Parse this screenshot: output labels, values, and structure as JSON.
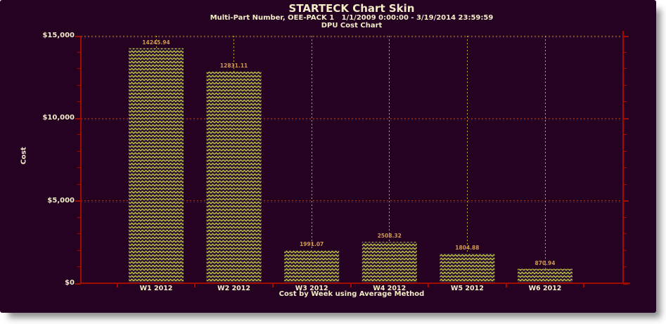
{
  "window": {
    "background": "#250222",
    "frame_shadow": "#8a8a8a"
  },
  "header": {
    "title": "STARTECK Chart Skin",
    "subtitle": "Multi-Part Number, OEE-PACK 1   1/1/2009 0:00:00 - 3/19/2014 23:59:59",
    "chart_name": "DPU Cost Chart"
  },
  "chart_data": {
    "type": "bar",
    "title": "STARTECK Chart Skin",
    "subtitle": "Multi-Part Number, OEE-PACK 1   1/1/2009 0:00:00 - 3/19/2014 23:59:59",
    "chart_label": "DPU Cost Chart",
    "categories": [
      "W1 2012",
      "W2 2012",
      "W3 2012",
      "W4 2012",
      "W5 2012",
      "W6 2012"
    ],
    "values": [
      14245.94,
      12831.11,
      1991.07,
      2508.32,
      1804.88,
      870.94
    ],
    "bar_value_labels": [
      "14245.94",
      "12831.11",
      "1991.07",
      "2508.32",
      "1804.88",
      "870.94"
    ],
    "xlabel": "Cost by Week using Average Method",
    "ylabel": "Cost",
    "ylim": [
      0,
      15000
    ],
    "ymajor_ticks": [
      0,
      5000,
      10000,
      15000
    ],
    "ymajor_tick_labels": [
      "$0",
      "$5,000",
      "$10,000",
      "$15,000"
    ],
    "yminor_tick_step": 1000,
    "grid": {
      "horizontal_major": "dotted",
      "vertical_category_centers": "dotted"
    },
    "legend_position": "none",
    "bar_style": "yellow zigzag hatch on dark purple fill"
  },
  "colors": {
    "background": "#250222",
    "title_text": "#f2edc7",
    "axis_text": "#f2edc7",
    "bar_label_text": "#cf9a52",
    "axis_line": "#a30b00",
    "grid_horizontal": "#b33000",
    "grid_top": "#c27a22",
    "grid_vertical": "#c9a735",
    "grid_shadow": "rgba(190,190,190,0.22)",
    "bar_hatch": "#d6d23e",
    "bar_fill": "#2b1734"
  }
}
